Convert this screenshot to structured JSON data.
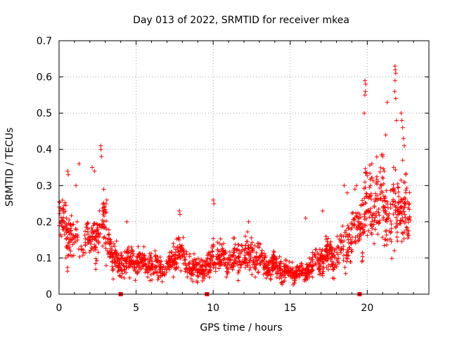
{
  "chart_data": {
    "type": "scatter",
    "title": "Day 013 of 2022, SRMTID for receiver mkea",
    "xlabel": "GPS time / hours",
    "ylabel": "SRMTID / TECUs",
    "xlim": [
      0,
      24
    ],
    "ylim": [
      0,
      0.7
    ],
    "xticks": [
      0,
      5,
      10,
      15,
      20
    ],
    "yticks": [
      0,
      0.1,
      0.2,
      0.3,
      0.4,
      0.5,
      0.6,
      0.7
    ],
    "xtick_labels": [
      "0",
      "5",
      "10",
      "15",
      "20"
    ],
    "ytick_labels": [
      "0",
      "0.1",
      "0.2",
      "0.3",
      "0.4",
      "0.5",
      "0.6",
      "0.7"
    ],
    "grid": true,
    "marker": "plus",
    "color": "#ff0000",
    "gap_markers_x": [
      4.0,
      9.6,
      19.5
    ],
    "profile": {
      "x": [
        0.0,
        0.5,
        1.0,
        1.5,
        2.0,
        2.5,
        3.0,
        3.5,
        4.0,
        4.5,
        5.0,
        6.0,
        7.0,
        7.7,
        8.5,
        9.5,
        10.0,
        11.0,
        12.0,
        12.5,
        13.5,
        14.5,
        15.0,
        15.5,
        16.0,
        16.5,
        17.0,
        17.5,
        18.0,
        18.5,
        19.0,
        19.5,
        19.8,
        20.5,
        21.0,
        21.5,
        22.0,
        22.5,
        22.8
      ],
      "mean": [
        0.2,
        0.17,
        0.15,
        0.16,
        0.14,
        0.17,
        0.19,
        0.1,
        0.08,
        0.09,
        0.09,
        0.08,
        0.07,
        0.12,
        0.07,
        0.07,
        0.1,
        0.09,
        0.1,
        0.11,
        0.08,
        0.07,
        0.06,
        0.06,
        0.06,
        0.08,
        0.1,
        0.1,
        0.11,
        0.13,
        0.16,
        0.19,
        0.22,
        0.26,
        0.25,
        0.22,
        0.25,
        0.22,
        0.2
      ],
      "spread": [
        0.06,
        0.07,
        0.05,
        0.06,
        0.05,
        0.07,
        0.07,
        0.04,
        0.03,
        0.04,
        0.03,
        0.03,
        0.03,
        0.05,
        0.03,
        0.03,
        0.04,
        0.04,
        0.04,
        0.04,
        0.03,
        0.03,
        0.02,
        0.02,
        0.02,
        0.03,
        0.04,
        0.04,
        0.05,
        0.05,
        0.06,
        0.07,
        0.08,
        0.09,
        0.1,
        0.12,
        0.1,
        0.08,
        0.06
      ]
    },
    "n_points": 1900,
    "spikes": [
      {
        "x": 0.55,
        "y": 0.34
      },
      {
        "x": 0.6,
        "y": 0.33
      },
      {
        "x": 1.3,
        "y": 0.36
      },
      {
        "x": 1.1,
        "y": 0.3
      },
      {
        "x": 2.15,
        "y": 0.35
      },
      {
        "x": 2.3,
        "y": 0.34
      },
      {
        "x": 2.7,
        "y": 0.41
      },
      {
        "x": 2.72,
        "y": 0.4
      },
      {
        "x": 2.75,
        "y": 0.38
      },
      {
        "x": 3.1,
        "y": 0.26
      },
      {
        "x": 3.05,
        "y": 0.25
      },
      {
        "x": 4.4,
        "y": 0.2
      },
      {
        "x": 7.8,
        "y": 0.23
      },
      {
        "x": 7.85,
        "y": 0.22
      },
      {
        "x": 10.0,
        "y": 0.26
      },
      {
        "x": 10.05,
        "y": 0.25
      },
      {
        "x": 12.3,
        "y": 0.2
      },
      {
        "x": 16.0,
        "y": 0.21
      },
      {
        "x": 17.1,
        "y": 0.23
      },
      {
        "x": 18.5,
        "y": 0.3
      },
      {
        "x": 18.7,
        "y": 0.28
      },
      {
        "x": 19.3,
        "y": 0.3
      },
      {
        "x": 19.2,
        "y": 0.29
      },
      {
        "x": 19.85,
        "y": 0.59
      },
      {
        "x": 19.9,
        "y": 0.58
      },
      {
        "x": 19.88,
        "y": 0.56
      },
      {
        "x": 19.85,
        "y": 0.55
      },
      {
        "x": 19.8,
        "y": 0.5
      },
      {
        "x": 20.2,
        "y": 0.3
      },
      {
        "x": 20.3,
        "y": 0.36
      },
      {
        "x": 21.0,
        "y": 0.38
      },
      {
        "x": 21.2,
        "y": 0.44
      },
      {
        "x": 21.3,
        "y": 0.53
      },
      {
        "x": 21.8,
        "y": 0.63
      },
      {
        "x": 21.82,
        "y": 0.62
      },
      {
        "x": 21.85,
        "y": 0.61
      },
      {
        "x": 21.8,
        "y": 0.59
      },
      {
        "x": 21.78,
        "y": 0.56
      },
      {
        "x": 21.85,
        "y": 0.54
      },
      {
        "x": 21.9,
        "y": 0.48
      },
      {
        "x": 22.2,
        "y": 0.5
      },
      {
        "x": 22.25,
        "y": 0.48
      },
      {
        "x": 22.3,
        "y": 0.46
      },
      {
        "x": 22.35,
        "y": 0.43
      },
      {
        "x": 22.4,
        "y": 0.41
      },
      {
        "x": 22.3,
        "y": 0.37
      },
      {
        "x": 22.5,
        "y": 0.33
      },
      {
        "x": 21.1,
        "y": 0.34
      }
    ]
  }
}
